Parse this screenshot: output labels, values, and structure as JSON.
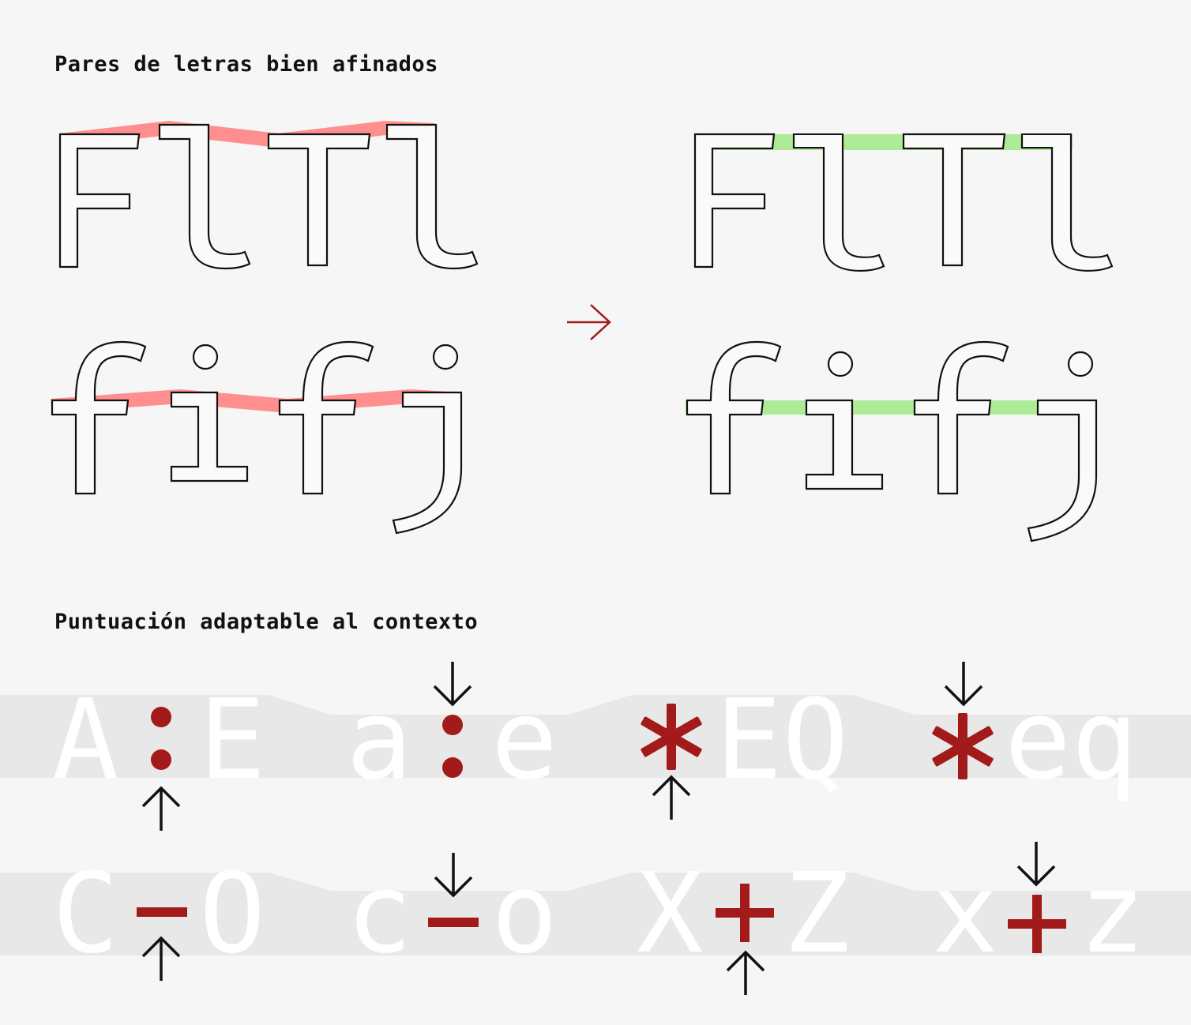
{
  "headings": {
    "ligatures": "Pares de letras bien afinados",
    "punctuation": "Puntuación adaptable al contexto"
  },
  "ligature_examples": {
    "top_row": "FlTl",
    "bottom_row": "fifj",
    "transition_arrow": "→"
  },
  "punctuation_examples": {
    "row1": [
      {
        "left": "A",
        "mark": "colon",
        "right": "E"
      },
      {
        "left": "a",
        "mark": "colon",
        "right": "e"
      },
      {
        "left": "",
        "mark": "asterisk",
        "right": "EQ"
      },
      {
        "left": "",
        "mark": "asterisk",
        "right": "eq"
      }
    ],
    "row2": [
      {
        "left": "C",
        "mark": "minus",
        "right": "O"
      },
      {
        "left": "c",
        "mark": "minus",
        "right": "o"
      },
      {
        "left": "X",
        "mark": "plus",
        "right": "Z"
      },
      {
        "left": "x",
        "mark": "plus",
        "right": "z"
      }
    ]
  },
  "colors": {
    "background": "#f6f6f6",
    "misaligned_highlight": "#ff8f8f",
    "aligned_highlight": "#aeeb96",
    "accent": "#a31a1a",
    "band": "#e8e8e8",
    "ghost_letters": "#ffffff"
  },
  "icons": [
    "arrow-right-icon",
    "arrow-down-icon",
    "arrow-up-icon"
  ]
}
